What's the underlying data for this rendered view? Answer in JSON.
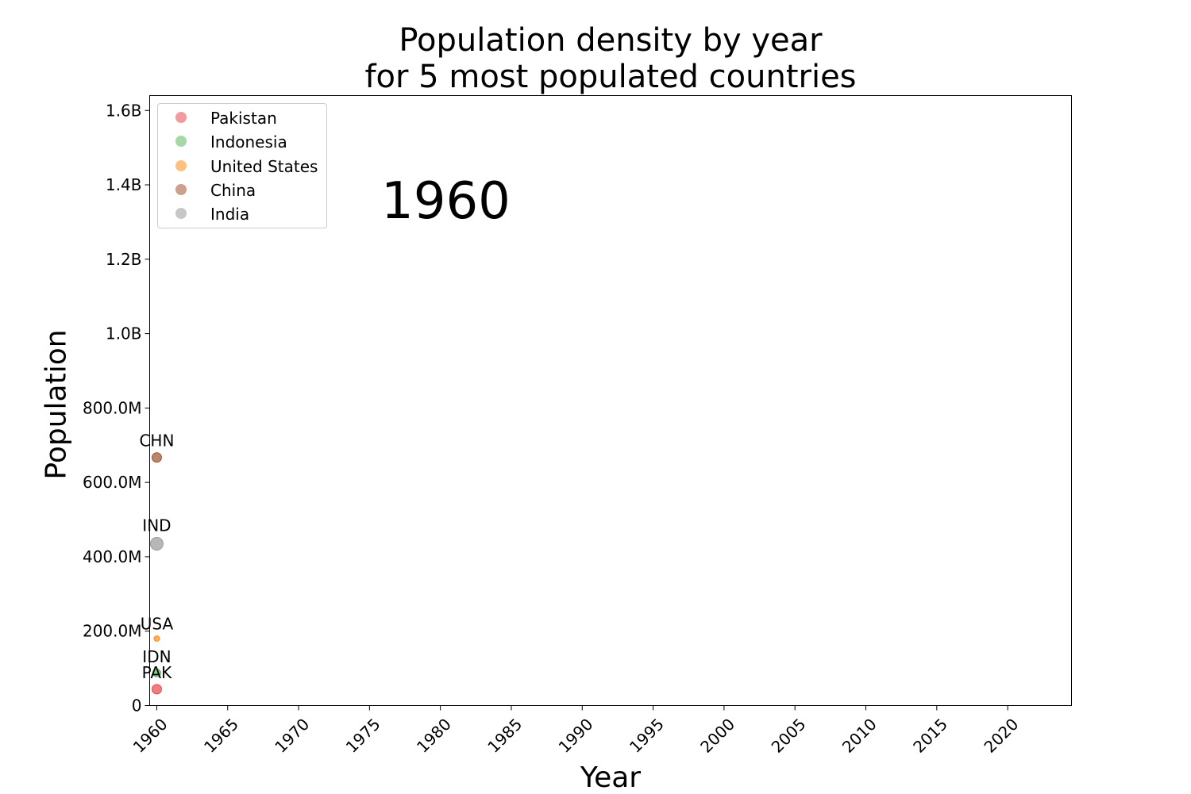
{
  "chart_data": {
    "type": "scatter",
    "title": [
      "Population density by year",
      "for 5 most populated countries"
    ],
    "xlabel": "Year",
    "ylabel": "Population",
    "current_year_label": "1960",
    "xlim": [
      1959.5,
      2024.5
    ],
    "ylim": [
      0,
      1640000000
    ],
    "x_ticks": [
      1960,
      1965,
      1970,
      1975,
      1980,
      1985,
      1990,
      1995,
      2000,
      2005,
      2010,
      2015,
      2020
    ],
    "x_tick_labels": [
      "1960",
      "1965",
      "1970",
      "1975",
      "1980",
      "1985",
      "1990",
      "1995",
      "2000",
      "2005",
      "2010",
      "2015",
      "2020"
    ],
    "y_ticks": [
      0,
      200000000,
      400000000,
      600000000,
      800000000,
      1000000000,
      1200000000,
      1400000000,
      1600000000
    ],
    "y_tick_labels": [
      "0",
      "200.0M",
      "400.0M",
      "600.0M",
      "800.0M",
      "1.0B",
      "1.2B",
      "1.4B",
      "1.6B"
    ],
    "grid": false,
    "legend_position": "top-left",
    "legend": [
      {
        "name": "Pakistan",
        "color": "#e8474f"
      },
      {
        "name": "Indonesia",
        "color": "#5cb85c"
      },
      {
        "name": "United States",
        "color": "#ff8c1a"
      },
      {
        "name": "China",
        "color": "#a0522d"
      },
      {
        "name": "India",
        "color": "#999999"
      }
    ],
    "points": [
      {
        "label": "CHN",
        "x": 1960,
        "y": 667000000,
        "color": "#a0522d",
        "marker_size": 6
      },
      {
        "label": "IND",
        "x": 1960,
        "y": 435000000,
        "color": "#999999",
        "marker_size": 8
      },
      {
        "label": "USA",
        "x": 1960,
        "y": 180000000,
        "color": "#ff8c1a",
        "marker_size": 3.5
      },
      {
        "label": "IDN",
        "x": 1960,
        "y": 88000000,
        "color": "#5cb85c",
        "marker_size": 5
      },
      {
        "label": "PAK",
        "x": 1960,
        "y": 44000000,
        "color": "#e8474f",
        "marker_size": 6
      }
    ]
  }
}
